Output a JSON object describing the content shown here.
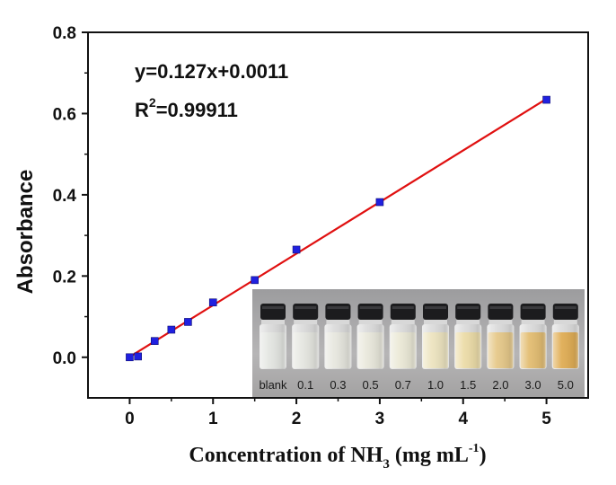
{
  "chart_data": {
    "type": "scatter",
    "xlabel": "Concentration of NH",
    "xlabel_sub": "3",
    "xlabel_unit_pre": " (mg mL",
    "xlabel_unit_sup": "-1",
    "xlabel_unit_post": ")",
    "ylabel": "Absorbance",
    "xlim": [
      -0.5,
      5.5
    ],
    "ylim": [
      -0.1,
      0.8
    ],
    "xticks": [
      "0",
      "1",
      "2",
      "3",
      "4",
      "5"
    ],
    "yticks": [
      "0.0",
      "0.2",
      "0.4",
      "0.6",
      "0.8"
    ],
    "grid": false,
    "points": {
      "x": [
        0,
        0.1,
        0.3,
        0.5,
        0.7,
        1.0,
        1.5,
        2.0,
        3.0,
        5.0
      ],
      "y": [
        0.0,
        0.002,
        0.04,
        0.068,
        0.087,
        0.135,
        0.19,
        0.265,
        0.382,
        0.634
      ],
      "color": "#2020e0"
    },
    "fit": {
      "slope": 0.127,
      "intercept": 0.0011,
      "x_range": [
        0,
        5
      ],
      "color": "#e01010"
    },
    "annotations": {
      "equation": "y=0.127x+0.0011",
      "r2_prefix": "R",
      "r2_sup": "2",
      "r2_value": "=0.99911"
    },
    "inset": {
      "labels": [
        "blank",
        "0.1",
        "0.3",
        "0.5",
        "0.7",
        "1.0",
        "1.5",
        "2.0",
        "3.0",
        "5.0"
      ],
      "liquid_colors": [
        "#e4e6e2",
        "#e6e7e1",
        "#e7e7df",
        "#e9e8dc",
        "#ebe9d7",
        "#ede4c0",
        "#ecdca8",
        "#e6c98a",
        "#e3bd72",
        "#e0ad55"
      ]
    }
  }
}
